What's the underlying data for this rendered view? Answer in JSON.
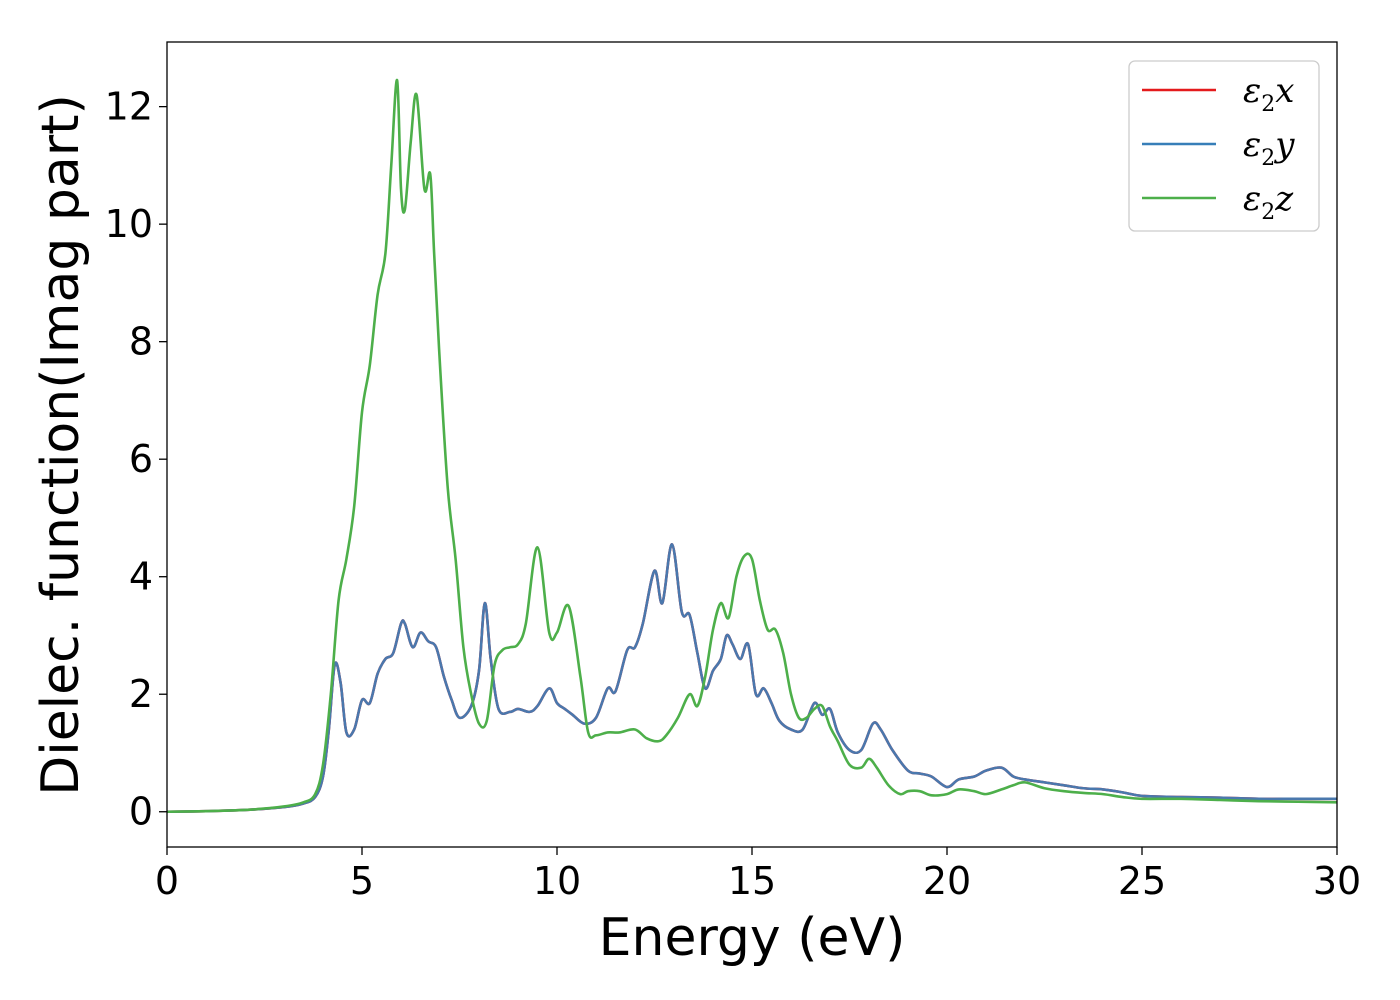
{
  "chart_data": {
    "type": "line",
    "xlabel": "Energy (eV)",
    "ylabel": "Dielec. function(Imag part)",
    "xlim": [
      0,
      30
    ],
    "ylim": [
      -0.6,
      13.1
    ],
    "xticks": [
      "0",
      "5",
      "10",
      "15",
      "20",
      "25",
      "30"
    ],
    "yticks": [
      "0",
      "2",
      "4",
      "6",
      "8",
      "10",
      "12"
    ],
    "grid": false,
    "legend_position": "top-right",
    "legend": [
      {
        "symbol": "ε",
        "sub": "2",
        "axis": "x",
        "color": "#e41a1c"
      },
      {
        "symbol": "ε",
        "sub": "2",
        "axis": "y",
        "color": "#377eb8"
      },
      {
        "symbol": "ε",
        "sub": "2",
        "axis": "z",
        "color": "#4daf4a"
      }
    ],
    "series": [
      {
        "name": "ε2x",
        "color": "#e41a1c",
        "x": [
          0,
          1,
          2,
          3,
          3.5,
          3.8,
          4.0,
          4.15,
          4.3,
          4.45,
          4.6,
          4.8,
          5.0,
          5.2,
          5.4,
          5.6,
          5.8,
          6.0,
          6.1,
          6.3,
          6.5,
          6.7,
          6.9,
          7.1,
          7.3,
          7.5,
          7.8,
          8.0,
          8.15,
          8.3,
          8.5,
          8.8,
          9.0,
          9.3,
          9.5,
          9.8,
          10.0,
          10.2,
          10.4,
          10.7,
          11.0,
          11.3,
          11.5,
          11.8,
          12.0,
          12.2,
          12.5,
          12.7,
          12.95,
          13.2,
          13.4,
          13.6,
          13.8,
          14.0,
          14.2,
          14.35,
          14.5,
          14.7,
          14.9,
          15.1,
          15.3,
          15.5,
          15.7,
          16.0,
          16.3,
          16.6,
          16.8,
          17.0,
          17.2,
          17.5,
          17.8,
          18.1,
          18.3,
          18.6,
          19.0,
          19.3,
          19.6,
          20.0,
          20.3,
          20.7,
          21.0,
          21.4,
          21.7,
          22.0,
          22.5,
          23.0,
          23.5,
          24.0,
          24.5,
          25.0,
          26.0,
          27.0,
          28.0,
          29.0,
          30.0
        ],
        "y": [
          0,
          0.01,
          0.03,
          0.08,
          0.14,
          0.25,
          0.6,
          1.4,
          2.5,
          2.2,
          1.35,
          1.4,
          1.9,
          1.85,
          2.35,
          2.6,
          2.7,
          3.2,
          3.2,
          2.8,
          3.05,
          2.9,
          2.8,
          2.3,
          1.9,
          1.6,
          1.8,
          2.4,
          3.55,
          2.6,
          1.75,
          1.7,
          1.75,
          1.7,
          1.8,
          2.1,
          1.85,
          1.75,
          1.65,
          1.5,
          1.6,
          2.1,
          2.05,
          2.75,
          2.8,
          3.2,
          4.1,
          3.55,
          4.55,
          3.4,
          3.35,
          2.7,
          2.1,
          2.4,
          2.6,
          3.0,
          2.85,
          2.6,
          2.85,
          2.0,
          2.1,
          1.85,
          1.55,
          1.4,
          1.4,
          1.85,
          1.65,
          1.75,
          1.35,
          1.05,
          1.05,
          1.5,
          1.4,
          1.05,
          0.7,
          0.65,
          0.6,
          0.42,
          0.55,
          0.6,
          0.7,
          0.75,
          0.6,
          0.55,
          0.5,
          0.45,
          0.4,
          0.38,
          0.33,
          0.27,
          0.25,
          0.24,
          0.22,
          0.22,
          0.22
        ]
      },
      {
        "name": "ε2y",
        "color": "#4a78ad",
        "x": [
          0,
          1,
          2,
          3,
          3.5,
          3.8,
          4.0,
          4.15,
          4.3,
          4.45,
          4.6,
          4.8,
          5.0,
          5.2,
          5.4,
          5.6,
          5.8,
          6.0,
          6.1,
          6.3,
          6.5,
          6.7,
          6.9,
          7.1,
          7.3,
          7.5,
          7.8,
          8.0,
          8.15,
          8.3,
          8.5,
          8.8,
          9.0,
          9.3,
          9.5,
          9.8,
          10.0,
          10.2,
          10.4,
          10.7,
          11.0,
          11.3,
          11.5,
          11.8,
          12.0,
          12.2,
          12.5,
          12.7,
          12.95,
          13.2,
          13.4,
          13.6,
          13.8,
          14.0,
          14.2,
          14.35,
          14.5,
          14.7,
          14.9,
          15.1,
          15.3,
          15.5,
          15.7,
          16.0,
          16.3,
          16.6,
          16.8,
          17.0,
          17.2,
          17.5,
          17.8,
          18.1,
          18.3,
          18.6,
          19.0,
          19.3,
          19.6,
          20.0,
          20.3,
          20.7,
          21.0,
          21.4,
          21.7,
          22.0,
          22.5,
          23.0,
          23.5,
          24.0,
          24.5,
          25.0,
          26.0,
          27.0,
          28.0,
          29.0,
          30.0
        ],
        "y": [
          0,
          0.01,
          0.03,
          0.08,
          0.14,
          0.25,
          0.6,
          1.4,
          2.5,
          2.2,
          1.35,
          1.4,
          1.9,
          1.85,
          2.35,
          2.6,
          2.7,
          3.2,
          3.2,
          2.8,
          3.05,
          2.9,
          2.8,
          2.3,
          1.9,
          1.6,
          1.8,
          2.4,
          3.55,
          2.6,
          1.75,
          1.7,
          1.75,
          1.7,
          1.8,
          2.1,
          1.85,
          1.75,
          1.65,
          1.5,
          1.6,
          2.1,
          2.05,
          2.75,
          2.8,
          3.2,
          4.1,
          3.55,
          4.55,
          3.4,
          3.35,
          2.7,
          2.1,
          2.4,
          2.6,
          3.0,
          2.85,
          2.6,
          2.85,
          2.0,
          2.1,
          1.85,
          1.55,
          1.4,
          1.4,
          1.85,
          1.65,
          1.75,
          1.35,
          1.05,
          1.05,
          1.5,
          1.4,
          1.05,
          0.7,
          0.65,
          0.6,
          0.42,
          0.55,
          0.6,
          0.7,
          0.75,
          0.6,
          0.55,
          0.5,
          0.45,
          0.4,
          0.38,
          0.33,
          0.27,
          0.25,
          0.24,
          0.22,
          0.22,
          0.22
        ]
      },
      {
        "name": "ε2z",
        "color": "#4daf4a",
        "x": [
          0,
          1,
          2,
          3,
          3.5,
          3.8,
          4.0,
          4.2,
          4.4,
          4.6,
          4.8,
          5.0,
          5.2,
          5.4,
          5.6,
          5.75,
          5.9,
          6.0,
          6.1,
          6.25,
          6.4,
          6.6,
          6.75,
          6.85,
          7.0,
          7.2,
          7.4,
          7.6,
          7.8,
          8.0,
          8.2,
          8.4,
          8.6,
          8.8,
          9.0,
          9.2,
          9.5,
          9.8,
          10.0,
          10.3,
          10.6,
          10.8,
          11.0,
          11.3,
          11.6,
          12.0,
          12.3,
          12.6,
          12.8,
          13.1,
          13.4,
          13.6,
          13.8,
          14.0,
          14.2,
          14.4,
          14.6,
          14.8,
          15.0,
          15.2,
          15.4,
          15.6,
          15.8,
          16.0,
          16.2,
          16.4,
          16.6,
          16.8,
          17.0,
          17.2,
          17.5,
          17.8,
          18.0,
          18.2,
          18.5,
          18.8,
          19.0,
          19.3,
          19.6,
          20.0,
          20.3,
          20.7,
          21.0,
          21.4,
          21.7,
          22.0,
          22.5,
          23.0,
          23.5,
          24.0,
          24.5,
          25.0,
          26.0,
          27.0,
          28.0,
          29.0,
          30.0
        ],
        "y": [
          0,
          0.01,
          0.03,
          0.09,
          0.16,
          0.3,
          0.8,
          2.0,
          3.6,
          4.3,
          5.2,
          6.8,
          7.6,
          8.8,
          9.5,
          11.0,
          12.45,
          10.6,
          10.25,
          11.4,
          12.2,
          10.6,
          10.85,
          9.5,
          7.6,
          5.5,
          4.3,
          2.8,
          2.0,
          1.5,
          1.55,
          2.5,
          2.75,
          2.8,
          2.85,
          3.2,
          4.5,
          3.05,
          3.05,
          3.5,
          2.3,
          1.35,
          1.3,
          1.35,
          1.35,
          1.4,
          1.25,
          1.2,
          1.3,
          1.6,
          2.0,
          1.8,
          2.3,
          3.1,
          3.55,
          3.3,
          4.0,
          4.35,
          4.3,
          3.6,
          3.1,
          3.1,
          2.7,
          2.0,
          1.6,
          1.6,
          1.75,
          1.8,
          1.45,
          1.2,
          0.8,
          0.75,
          0.9,
          0.75,
          0.45,
          0.3,
          0.35,
          0.35,
          0.28,
          0.3,
          0.38,
          0.35,
          0.3,
          0.38,
          0.45,
          0.5,
          0.4,
          0.35,
          0.32,
          0.3,
          0.25,
          0.22,
          0.22,
          0.2,
          0.18,
          0.17,
          0.16
        ]
      }
    ]
  }
}
